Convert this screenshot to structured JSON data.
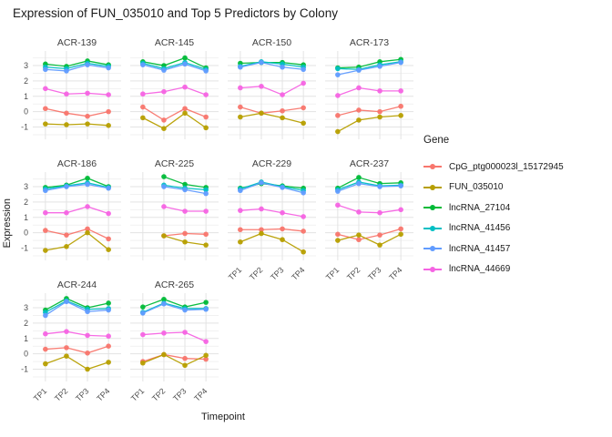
{
  "title": "Expression of FUN_035010 and Top 5 Predictors by Colony",
  "axes": {
    "x_title": "Timepoint",
    "y_title": "Expression",
    "x_ticks": [
      "TP1",
      "TP2",
      "TP3",
      "TP4"
    ],
    "y_ticks": [
      3,
      2,
      1,
      0,
      -1
    ]
  },
  "legend": {
    "title": "Gene",
    "entries": [
      {
        "label": "CpG_ptg000023l_15172945",
        "color": "#F8766D"
      },
      {
        "label": "FUN_035010",
        "color": "#B79F00"
      },
      {
        "label": "lncRNA_27104",
        "color": "#00BA38"
      },
      {
        "label": "lncRNA_41456",
        "color": "#00BFC4"
      },
      {
        "label": "lncRNA_41457",
        "color": "#619CFF"
      },
      {
        "label": "lncRNA_44669",
        "color": "#F564E3"
      }
    ]
  },
  "chart_data": {
    "type": "line",
    "title": "Expression of FUN_035010 and Top 5 Predictors by Colony",
    "xlabel": "Timepoint",
    "ylabel": "Expression",
    "x": [
      "TP1",
      "TP2",
      "TP3",
      "TP4"
    ],
    "ylim": [
      -1.8,
      3.95
    ],
    "grid": true,
    "legend_position": "right",
    "facets": [
      {
        "name": "ACR-139",
        "series": [
          {
            "gene": "CpG_ptg000023l_15172945",
            "values": [
              0.2,
              -0.1,
              -0.3,
              0.0
            ]
          },
          {
            "gene": "FUN_035010",
            "values": [
              -0.8,
              -0.85,
              -0.8,
              -0.9
            ]
          },
          {
            "gene": "lncRNA_27104",
            "values": [
              3.1,
              2.95,
              3.3,
              3.05
            ]
          },
          {
            "gene": "lncRNA_41456",
            "values": [
              2.9,
              2.8,
              3.15,
              2.95
            ]
          },
          {
            "gene": "lncRNA_41457",
            "values": [
              2.75,
              2.65,
              3.05,
              2.85
            ]
          },
          {
            "gene": "lncRNA_44669",
            "values": [
              1.5,
              1.15,
              1.2,
              1.1
            ]
          }
        ]
      },
      {
        "name": "ACR-145",
        "series": [
          {
            "gene": "CpG_ptg000023l_15172945",
            "values": [
              0.3,
              -0.55,
              0.2,
              -0.35
            ]
          },
          {
            "gene": "FUN_035010",
            "values": [
              -0.4,
              -1.1,
              -0.1,
              -1.05
            ]
          },
          {
            "gene": "lncRNA_27104",
            "values": [
              3.25,
              3.0,
              3.5,
              2.85
            ]
          },
          {
            "gene": "lncRNA_41456",
            "values": [
              3.15,
              2.8,
              3.2,
              2.75
            ]
          },
          {
            "gene": "lncRNA_41457",
            "values": [
              3.05,
              2.7,
              3.1,
              2.65
            ]
          },
          {
            "gene": "lncRNA_44669",
            "values": [
              1.15,
              1.3,
              1.6,
              1.1
            ]
          }
        ]
      },
      {
        "name": "ACR-150",
        "series": [
          {
            "gene": "CpG_ptg000023l_15172945",
            "values": [
              0.3,
              -0.1,
              0.05,
              0.25
            ]
          },
          {
            "gene": "FUN_035010",
            "values": [
              -0.35,
              -0.1,
              -0.4,
              -0.75
            ]
          },
          {
            "gene": "lncRNA_27104",
            "values": [
              3.15,
              3.2,
              3.2,
              3.05
            ]
          },
          {
            "gene": "lncRNA_41456",
            "values": [
              2.95,
              3.25,
              3.1,
              2.9
            ]
          },
          {
            "gene": "lncRNA_41457",
            "values": [
              2.9,
              3.2,
              2.9,
              2.75
            ]
          },
          {
            "gene": "lncRNA_44669",
            "values": [
              1.55,
              1.65,
              1.1,
              1.85
            ]
          }
        ]
      },
      {
        "name": "ACR-173",
        "series": [
          {
            "gene": "CpG_ptg000023l_15172945",
            "values": [
              -0.25,
              0.1,
              0.0,
              0.35
            ]
          },
          {
            "gene": "FUN_035010",
            "values": [
              -1.3,
              -0.55,
              -0.35,
              -0.25
            ]
          },
          {
            "gene": "lncRNA_27104",
            "values": [
              2.85,
              2.9,
              3.25,
              3.4
            ]
          },
          {
            "gene": "lncRNA_41456",
            "values": [
              2.8,
              2.75,
              3.05,
              3.25
            ]
          },
          {
            "gene": "lncRNA_41457",
            "values": [
              2.4,
              2.7,
              2.95,
              3.2
            ]
          },
          {
            "gene": "lncRNA_44669",
            "values": [
              1.05,
              1.55,
              1.35,
              1.35
            ]
          }
        ]
      },
      {
        "name": "ACR-186",
        "series": [
          {
            "gene": "CpG_ptg000023l_15172945",
            "values": [
              0.15,
              -0.15,
              0.25,
              -0.4
            ]
          },
          {
            "gene": "FUN_035010",
            "values": [
              -1.15,
              -0.9,
              0.0,
              -1.1
            ]
          },
          {
            "gene": "lncRNA_27104",
            "values": [
              2.95,
              3.1,
              3.55,
              3.0
            ]
          },
          {
            "gene": "lncRNA_41456",
            "values": [
              2.85,
              3.05,
              3.25,
              2.95
            ]
          },
          {
            "gene": "lncRNA_41457",
            "values": [
              2.75,
              3.0,
              3.15,
              2.9
            ]
          },
          {
            "gene": "lncRNA_44669",
            "values": [
              1.3,
              1.3,
              1.7,
              1.25
            ]
          }
        ]
      },
      {
        "name": "ACR-225",
        "series": [
          {
            "gene": "CpG_ptg000023l_15172945",
            "values": [
              null,
              -0.2,
              -0.05,
              -0.1
            ]
          },
          {
            "gene": "FUN_035010",
            "values": [
              null,
              -0.2,
              -0.6,
              -0.8
            ]
          },
          {
            "gene": "lncRNA_27104",
            "values": [
              null,
              3.65,
              3.15,
              2.95
            ]
          },
          {
            "gene": "lncRNA_41456",
            "values": [
              null,
              3.1,
              2.9,
              2.8
            ]
          },
          {
            "gene": "lncRNA_41457",
            "values": [
              null,
              3.0,
              2.8,
              2.55
            ]
          },
          {
            "gene": "lncRNA_44669",
            "values": [
              null,
              1.7,
              1.4,
              1.4
            ]
          }
        ]
      },
      {
        "name": "ACR-229",
        "series": [
          {
            "gene": "CpG_ptg000023l_15172945",
            "values": [
              0.2,
              0.2,
              0.25,
              0.1
            ]
          },
          {
            "gene": "FUN_035010",
            "values": [
              -0.6,
              -0.05,
              -0.45,
              -1.25
            ]
          },
          {
            "gene": "lncRNA_27104",
            "values": [
              2.9,
              3.2,
              3.05,
              2.9
            ]
          },
          {
            "gene": "lncRNA_41456",
            "values": [
              2.85,
              3.3,
              3.0,
              2.75
            ]
          },
          {
            "gene": "lncRNA_41457",
            "values": [
              2.75,
              3.25,
              2.95,
              2.6
            ]
          },
          {
            "gene": "lncRNA_44669",
            "values": [
              1.45,
              1.55,
              1.3,
              1.05
            ]
          }
        ]
      },
      {
        "name": "ACR-237",
        "series": [
          {
            "gene": "CpG_ptg000023l_15172945",
            "values": [
              -0.1,
              -0.45,
              -0.15,
              0.25
            ]
          },
          {
            "gene": "FUN_035010",
            "values": [
              -0.5,
              -0.15,
              -0.8,
              -0.1
            ]
          },
          {
            "gene": "lncRNA_27104",
            "values": [
              2.9,
              3.6,
              3.2,
              3.25
            ]
          },
          {
            "gene": "lncRNA_41456",
            "values": [
              2.8,
              3.3,
              3.05,
              3.1
            ]
          },
          {
            "gene": "lncRNA_41457",
            "values": [
              2.7,
              3.2,
              3.0,
              3.05
            ]
          },
          {
            "gene": "lncRNA_44669",
            "values": [
              1.8,
              1.35,
              1.3,
              1.5
            ]
          }
        ]
      },
      {
        "name": "ACR-244",
        "series": [
          {
            "gene": "CpG_ptg000023l_15172945",
            "values": [
              0.3,
              0.4,
              0.05,
              0.5
            ]
          },
          {
            "gene": "FUN_035010",
            "values": [
              -0.65,
              -0.15,
              -1.0,
              -0.55
            ]
          },
          {
            "gene": "lncRNA_27104",
            "values": [
              2.85,
              3.6,
              3.0,
              3.3
            ]
          },
          {
            "gene": "lncRNA_41456",
            "values": [
              2.7,
              3.45,
              2.9,
              2.95
            ]
          },
          {
            "gene": "lncRNA_41457",
            "values": [
              2.5,
              3.4,
              2.75,
              2.85
            ]
          },
          {
            "gene": "lncRNA_44669",
            "values": [
              1.3,
              1.45,
              1.2,
              1.15
            ]
          }
        ]
      },
      {
        "name": "ACR-265",
        "series": [
          {
            "gene": "CpG_ptg000023l_15172945",
            "values": [
              -0.5,
              -0.05,
              -0.3,
              -0.35
            ]
          },
          {
            "gene": "FUN_035010",
            "values": [
              -0.6,
              -0.05,
              -0.75,
              -0.1
            ]
          },
          {
            "gene": "lncRNA_27104",
            "values": [
              3.05,
              3.55,
              3.05,
              3.35
            ]
          },
          {
            "gene": "lncRNA_41456",
            "values": [
              2.7,
              3.3,
              2.95,
              2.95
            ]
          },
          {
            "gene": "lncRNA_41457",
            "values": [
              2.65,
              3.25,
              2.85,
              2.9
            ]
          },
          {
            "gene": "lncRNA_44669",
            "values": [
              1.25,
              1.35,
              1.4,
              0.8
            ]
          }
        ]
      }
    ]
  }
}
